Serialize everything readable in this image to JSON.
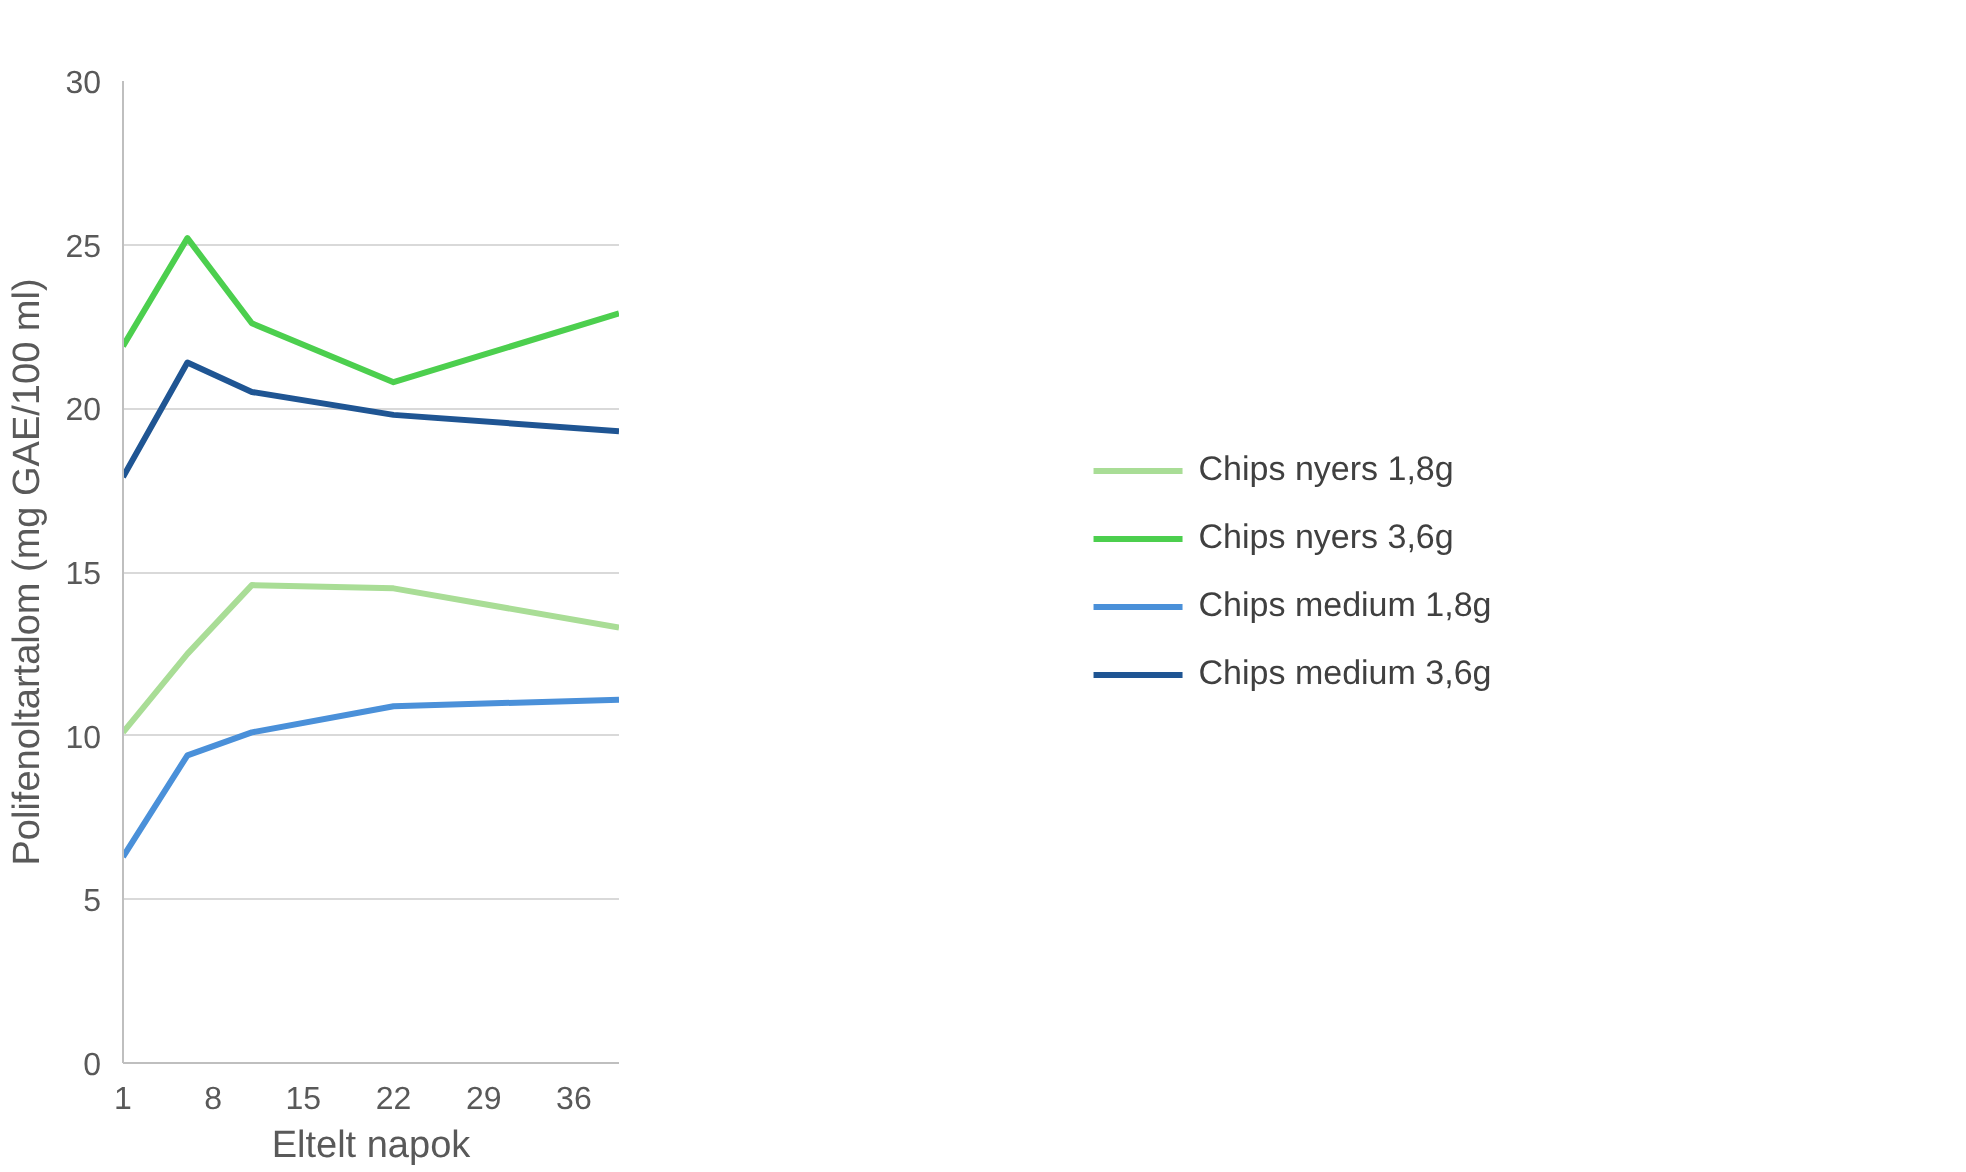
{
  "chart_data": {
    "type": "line",
    "xlabel": "Eltelt napok",
    "ylabel": "Polifenoltartalom (mg GAE/100 ml)",
    "x": [
      1,
      6,
      11,
      22,
      39.5
    ],
    "series": [
      {
        "name": "Chips nyers 1,8g",
        "color": "#a9dd96",
        "values": [
          10.1,
          12.5,
          14.6,
          14.5,
          13.3
        ]
      },
      {
        "name": "Chips nyers 3,6g",
        "color": "#4ccf4e",
        "values": [
          21.9,
          25.2,
          22.6,
          20.8,
          22.9
        ]
      },
      {
        "name": "Chips medium 1,8g",
        "color": "#4a90d9",
        "values": [
          6.3,
          9.4,
          10.1,
          10.9,
          11.1
        ]
      },
      {
        "name": "Chips medium 3,6g",
        "color": "#1f5593",
        "values": [
          17.9,
          21.4,
          20.5,
          19.8,
          19.3
        ]
      }
    ],
    "xlim": [
      1,
      39.5
    ],
    "xticks": [
      1,
      8,
      15,
      22,
      29,
      36
    ],
    "ylim": [
      0,
      30
    ],
    "yticks": [
      0,
      5,
      10,
      15,
      20,
      25,
      30
    ],
    "grid": "y",
    "legend": "right",
    "line_style": "solid",
    "marker": "none"
  }
}
